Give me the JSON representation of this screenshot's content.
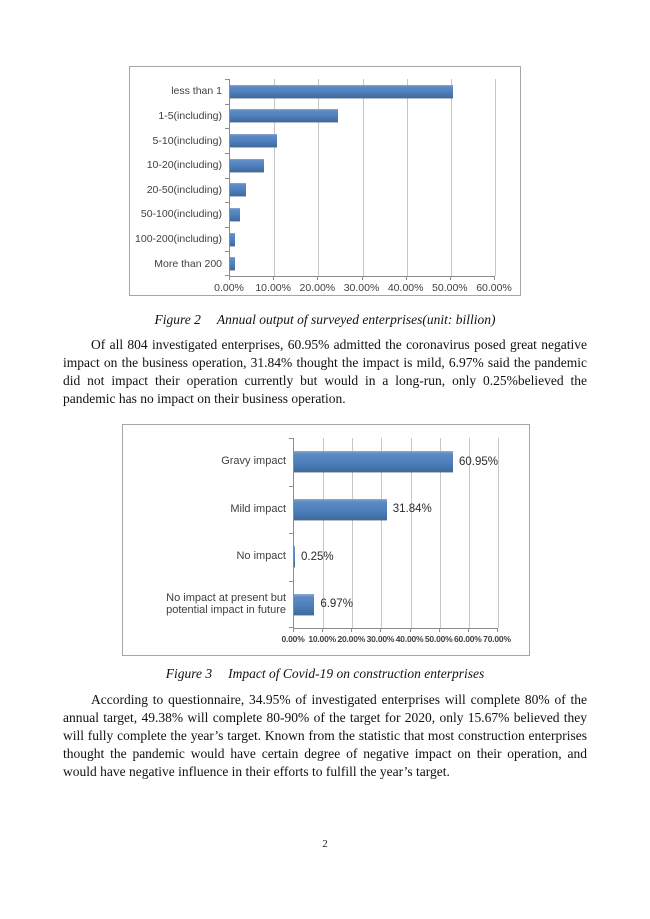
{
  "page_number": "2",
  "captions": {
    "figure2_label": "Figure 2",
    "figure2_text": "Annual output of surveyed enterprises(unit: billion)",
    "figure3_label": "Figure 3",
    "figure3_text": "Impact of Covid-19 on construction enterprises"
  },
  "paragraphs": {
    "p1": "Of all 804 investigated enterprises, 60.95% admitted the coronavirus posed great negative impact on the business operation, 31.84% thought the impact is mild, 6.97% said the pandemic did not impact their operation currently but would in a long-run, only 0.25%believed the pandemic has no impact on their business operation.",
    "p2": "According to questionnaire, 34.95% of investigated enterprises will complete 80% of the annual target, 49.38% will complete 80-90% of the target for 2020, only 15.67% believed they will fully complete the year’s target. Known from the statistic that most construction enterprises thought the pandemic would have certain degree of negative impact on their operation, and would have negative influence in their efforts to fulfill the year’s target."
  },
  "colors": {
    "bar": "#4F81BD",
    "grid": "#C6C6C6",
    "axis": "#8C8C8C",
    "frame_border": "#A6A6A6"
  },
  "chart_data": [
    {
      "type": "bar",
      "orientation": "horizontal",
      "title": "Annual output of surveyed enterprises (unit: billion)",
      "categories": [
        "less than 1",
        "1-5(including)",
        "5-10(including)",
        "10-20(including)",
        "20-50(including)",
        "50-100(including)",
        "100-200(including)",
        "More than 200"
      ],
      "values": [
        50.5,
        24.5,
        10.6,
        7.6,
        3.7,
        2.2,
        1.2,
        1.2
      ],
      "xlim": [
        0,
        60
      ],
      "xticks": [
        "0.00%",
        "10.00%",
        "20.00%",
        "30.00%",
        "40.00%",
        "50.00%",
        "60.00%"
      ],
      "grid": true,
      "legend": "none",
      "show_value_labels": false
    },
    {
      "type": "bar",
      "orientation": "horizontal",
      "title": "Impact of Covid-19 on construction enterprises",
      "categories": [
        "Gravy impact",
        "Mild impact",
        "No impact",
        "No impact at present but potential impact in future"
      ],
      "values": [
        60.95,
        31.84,
        0.25,
        6.97
      ],
      "value_labels": [
        "60.95%",
        "31.84%",
        "0.25%",
        "6.97%"
      ],
      "xlim": [
        0,
        70
      ],
      "xticks": [
        "0.00%",
        "10.00%",
        "20.00%",
        "30.00%",
        "40.00%",
        "50.00%",
        "60.00%",
        "70.00%"
      ],
      "grid": true,
      "legend": "none",
      "show_value_labels": true
    }
  ]
}
